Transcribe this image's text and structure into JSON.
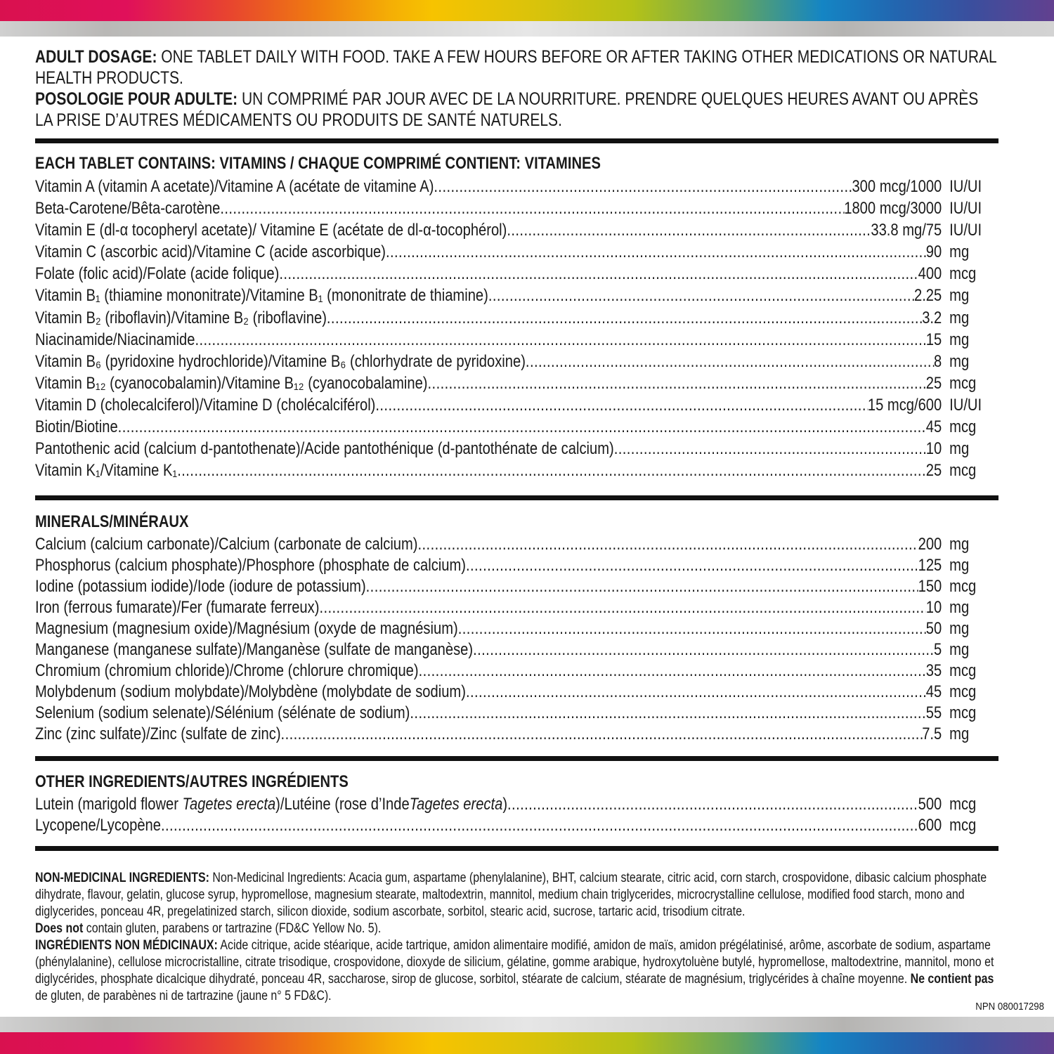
{
  "colors": {
    "text": "#1a1a1a",
    "rule": "#111111"
  },
  "dosage": {
    "en_label": "ADULT DOSAGE:",
    "en_text": " ONE TABLET DAILY WITH FOOD. TAKE A FEW HOURS BEFORE OR AFTER TAKING OTHER MEDICATIONS OR NATURAL HEALTH PRODUCTS.",
    "fr_label": "POSOLOGIE POUR ADULTE:",
    "fr_text": " UN COMPRIMÉ PAR JOUR AVEC DE LA NOURRITURE. PRENDRE QUELQUES HEURES AVANT OU APRÈS LA PRISE D’AUTRES MÉDICAMENTS OU PRODUITS DE SANTÉ NATURELS."
  },
  "vitamins": {
    "heading": "EACH TABLET CONTAINS: VITAMINS / CHAQUE COMPRIMÉ CONTIENT: VITAMINES",
    "items": [
      {
        "name": "Vitamin A (vitamin A acetate)/Vitamine A (acétate de vitamine A)",
        "value": "300 mcg/1000",
        "unit": "IU/UI"
      },
      {
        "name": "Beta-Carotene/Bêta-carotène",
        "value": "1800 mcg/3000",
        "unit": "IU/UI"
      },
      {
        "name": "Vitamin E (dl-α tocopheryl acetate)/ Vitamine E (acétate de dl-α-tocophérol)",
        "value": "33.8 mg/75",
        "unit": "IU/UI"
      },
      {
        "name": "Vitamin C (ascorbic acid)/Vitamine C (acide ascorbique)",
        "value": "90",
        "unit": "mg"
      },
      {
        "name": "Folate (folic acid)/Folate (acide folique)",
        "value": "400",
        "unit": "mcg"
      },
      {
        "name": "Vitamin B₁ (thiamine mononitrate)/Vitamine B₁ (mononitrate de thiamine)",
        "value": "2.25",
        "unit": "mg"
      },
      {
        "name": "Vitamin B₂ (riboflavin)/Vitamine B₂ (riboflavine)",
        "value": "3.2",
        "unit": "mg"
      },
      {
        "name": "Niacinamide/Niacinamide",
        "value": "15",
        "unit": "mg"
      },
      {
        "name": "Vitamin B₆ (pyridoxine hydrochloride)/Vitamine B₆ (chlorhydrate de pyridoxine)",
        "value": "8",
        "unit": "mg"
      },
      {
        "name": "Vitamin B₁₂ (cyanocobalamin)/Vitamine B₁₂ (cyanocobalamine)",
        "value": "25",
        "unit": "mcg"
      },
      {
        "name": "Vitamin D (cholecalciferol)/Vitamine D (cholécalciférol)",
        "value": "15 mcg/600",
        "unit": "IU/UI"
      },
      {
        "name": "Biotin/Biotine",
        "value": "45",
        "unit": "mcg"
      },
      {
        "name": "Pantothenic acid (calcium d-pantothenate)/Acide pantothénique (d-pantothénate de calcium)",
        "value": "10",
        "unit": "mg"
      },
      {
        "name": "Vitamin K₁/Vitamine K₁",
        "value": "25",
        "unit": "mcg"
      }
    ]
  },
  "minerals": {
    "heading": "MINERALS/MINÉRAUX",
    "items": [
      {
        "name": "Calcium (calcium carbonate)/Calcium (carbonate de calcium)",
        "value": "200",
        "unit": "mg"
      },
      {
        "name": "Phosphorus (calcium phosphate)/Phosphore (phosphate de calcium)",
        "value": "125",
        "unit": "mg"
      },
      {
        "name": "Iodine (potassium iodide)/Iode (iodure de potassium)",
        "value": "150",
        "unit": "mcg"
      },
      {
        "name": "Iron (ferrous fumarate)/Fer (fumarate ferreux)",
        "value": "10",
        "unit": "mg"
      },
      {
        "name": "Magnesium (magnesium oxide)/Magnésium (oxyde de magnésium)",
        "value": "50",
        "unit": "mg"
      },
      {
        "name": "Manganese (manganese sulfate)/Manganèse (sulfate de manganèse)",
        "value": "5",
        "unit": "mg"
      },
      {
        "name": "Chromium (chromium chloride)/Chrome (chlorure chromique)",
        "value": "35",
        "unit": "mcg"
      },
      {
        "name": "Molybdenum (sodium molybdate)/Molybdène (molybdate de sodium)",
        "value": "45",
        "unit": "mcg"
      },
      {
        "name": "Selenium (sodium selenate)/Sélénium (sélénate de sodium)",
        "value": "55",
        "unit": "mcg"
      },
      {
        "name": "Zinc (zinc sulfate)/Zinc (sulfate de zinc)",
        "value": "7.5",
        "unit": "mg"
      }
    ]
  },
  "other": {
    "heading": "OTHER INGREDIENTS/AUTRES INGRÉDIENTS",
    "lutein": {
      "part1": "Lutein (marigold flower ",
      "italic1": "Tagetes erecta",
      "part2": ")/Lutéine (rose d’Inde",
      "italic2": "Tagetes erecta",
      "part3": ")",
      "value": "500",
      "unit": "mcg"
    },
    "items": [
      {
        "name": "Lycopene/Lycopène",
        "value": "600",
        "unit": "mcg"
      }
    ]
  },
  "non_medicinal": {
    "en_label": "NON-MEDICINAL INGREDIENTS:",
    "en_text": " Non-Medicinal Ingredients: Acacia gum, aspartame (phenylalanine), BHT, calcium stearate, citric acid, corn starch, crospovidone, dibasic calcium phosphate dihydrate, flavour, gelatin, glucose syrup, hypromellose, magnesium stearate, maltodextrin, mannitol, medium chain triglycerides, microcrystalline cellulose, modified food starch, mono and diglycerides, ponceau 4R, pregelatinized starch, silicon dioxide, sodium ascorbate, sorbitol, stearic acid, sucrose, tartaric acid, trisodium citrate.",
    "en_free_label": "Does not",
    "en_free_text": " contain gluten, parabens or tartrazine (FD&C Yellow No. 5).",
    "fr_label": "INGRÉDIENTS NON MÉDICINAUX:",
    "fr_text": " Acide citrique, acide stéarique, acide tartrique, amidon alimentaire modifié, amidon de maïs, amidon prégélatinisé, arôme, ascorbate de sodium, aspartame (phénylalanine), cellulose microcristalline, citrate trisodique, crospovidone, dioxyde de silicium, gélatine, gomme arabique, hydroxytoluène butylé, hypromellose, maltodextrine, mannitol, mono et diglycérides, phosphate dicalcique dihydraté, ponceau 4R, saccharose, sirop de glucose, sorbitol, stéarate de calcium, stéarate de magnésium, triglycérides à chaîne moyenne.",
    "fr_free_label": "Ne contient pas",
    "fr_free_text": " de gluten, de parabènes ni de tartrazine (jaune n° 5 FD&C)."
  },
  "npn": "NPN 080017298"
}
